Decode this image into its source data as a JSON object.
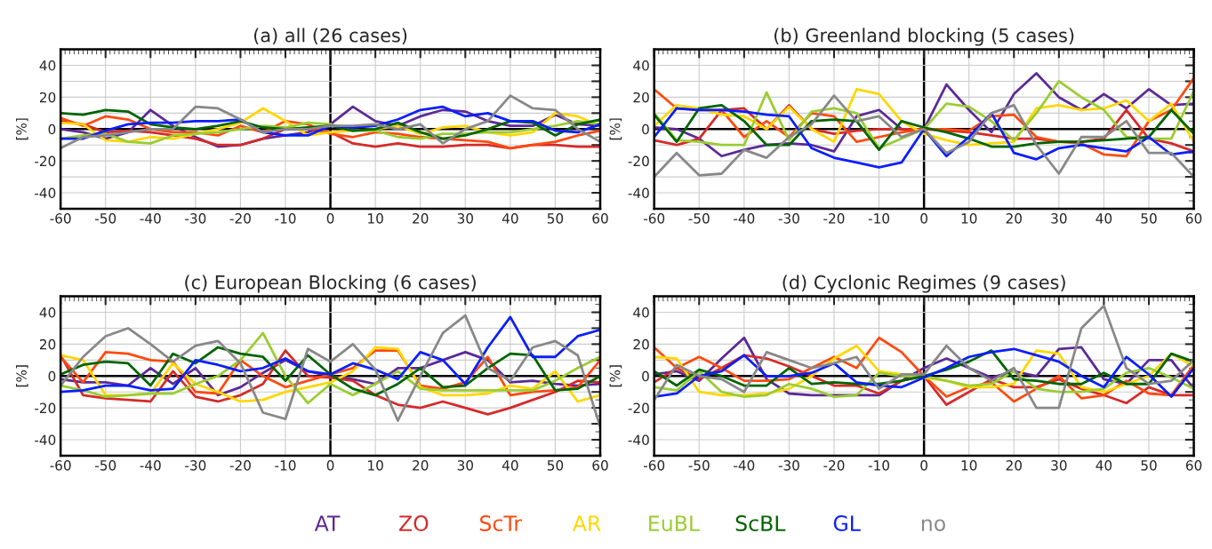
{
  "chart_data": [
    {
      "type": "line",
      "title": "(a) all (26 cases)",
      "ylabel": "[%]",
      "xlim": [
        -60,
        60
      ],
      "xticks": [
        -60,
        -50,
        -40,
        -30,
        -20,
        -10,
        0,
        10,
        20,
        30,
        40,
        50,
        60
      ],
      "ylim": [
        -50,
        50
      ],
      "yticks": [
        {
          "value": -50,
          "label": null
        },
        -40,
        {
          "value": -30,
          "label": null
        },
        -20,
        {
          "value": -10,
          "label": null
        },
        0,
        {
          "value": 10,
          "label": null
        },
        20,
        {
          "value": 30,
          "label": null
        },
        40,
        {
          "value": 50,
          "label": null
        }
      ],
      "grid": true,
      "legend": "bottom",
      "x": [
        -60,
        -55,
        -50,
        -45,
        -40,
        -35,
        -30,
        -25,
        -20,
        -15,
        -10,
        -5,
        0,
        5,
        10,
        15,
        20,
        25,
        30,
        35,
        40,
        45,
        50,
        55,
        60
      ],
      "series": [
        {
          "name": "AT",
          "color": "#5b2a96",
          "values": [
            0,
            -2,
            -6,
            -2,
            12,
            2,
            -5,
            -11,
            -10,
            -6,
            -4,
            -2,
            3,
            14,
            5,
            2,
            8,
            12,
            11,
            5,
            2,
            2,
            9,
            3,
            2
          ]
        },
        {
          "name": "ZO",
          "color": "#d62a2a",
          "values": [
            5,
            3,
            -2,
            -1,
            -2,
            -4,
            -6,
            -10,
            -10,
            -6,
            0,
            0,
            -2,
            -9,
            -11,
            -9,
            -11,
            -11,
            -10,
            -10,
            -12,
            -10,
            -10,
            -11,
            -11
          ]
        },
        {
          "name": "ScTr",
          "color": "#ff4a10",
          "values": [
            7,
            2,
            8,
            6,
            0,
            -2,
            -2,
            -4,
            2,
            -2,
            5,
            3,
            -3,
            -5,
            -2,
            -3,
            -5,
            -6,
            -7,
            -8,
            -12,
            -10,
            -8,
            -4,
            -1
          ]
        },
        {
          "name": "AR",
          "color": "#ffd700",
          "values": [
            4,
            3,
            -7,
            -8,
            -5,
            -6,
            -3,
            0,
            4,
            13,
            5,
            -4,
            -2,
            -1,
            0,
            2,
            -3,
            1,
            2,
            -2,
            -4,
            -2,
            10,
            8,
            2
          ]
        },
        {
          "name": "EuBL",
          "color": "#9acd32",
          "values": [
            -6,
            -4,
            -3,
            -8,
            -9,
            -4,
            -3,
            -2,
            0,
            2,
            1,
            4,
            3,
            -1,
            -1,
            -5,
            -6,
            -3,
            -3,
            -2,
            -2,
            0,
            2,
            5,
            3
          ]
        },
        {
          "name": "ScBL",
          "color": "#006400",
          "values": [
            10,
            9,
            12,
            11,
            3,
            1,
            0,
            2,
            5,
            1,
            0,
            1,
            2,
            -1,
            0,
            4,
            -2,
            -6,
            -4,
            0,
            5,
            4,
            -4,
            3,
            6
          ]
        },
        {
          "name": "GL",
          "color": "#0a1eff",
          "values": [
            -6,
            -6,
            -1,
            3,
            4,
            4,
            5,
            5,
            6,
            -2,
            -4,
            -4,
            2,
            1,
            2,
            6,
            12,
            14,
            8,
            10,
            5,
            5,
            -1,
            -2,
            3
          ]
        },
        {
          "name": "no",
          "color": "#888888",
          "values": [
            -12,
            -5,
            -4,
            -2,
            0,
            0,
            14,
            13,
            6,
            -2,
            0,
            0,
            2,
            2,
            3,
            0,
            3,
            -9,
            0,
            5,
            21,
            13,
            12,
            0,
            -8
          ]
        }
      ]
    },
    {
      "type": "line",
      "title": "(b) Greenland blocking (5 cases)",
      "ylabel": "[%]",
      "xlim": [
        -60,
        60
      ],
      "xticks": [
        -60,
        -50,
        -40,
        -30,
        -20,
        -10,
        0,
        10,
        20,
        30,
        40,
        50,
        60
      ],
      "ylim": [
        -50,
        50
      ],
      "yticks": [
        {
          "value": -50,
          "label": null
        },
        -40,
        {
          "value": -30,
          "label": null
        },
        -20,
        {
          "value": -10,
          "label": null
        },
        0,
        {
          "value": 10,
          "label": null
        },
        20,
        {
          "value": 30,
          "label": null
        },
        40,
        {
          "value": 50,
          "label": null
        }
      ],
      "grid": true,
      "x": [
        -60,
        -55,
        -50,
        -45,
        -40,
        -35,
        -30,
        -25,
        -20,
        -15,
        -10,
        -5,
        0,
        5,
        10,
        15,
        20,
        25,
        30,
        35,
        40,
        45,
        50,
        55,
        60
      ],
      "series": [
        {
          "color": "#5b2a96",
          "values": [
            1,
            0,
            -6,
            -17,
            -13,
            -10,
            -9,
            -10,
            -14,
            8,
            12,
            0,
            0,
            28,
            12,
            -2,
            22,
            35,
            20,
            12,
            22,
            13,
            25,
            15,
            16
          ]
        },
        {
          "color": "#d62a2a",
          "values": [
            -7,
            -10,
            -6,
            12,
            13,
            0,
            15,
            0,
            -3,
            -1,
            0,
            0,
            0,
            -1,
            -2,
            -4,
            -6,
            -6,
            -8,
            -8,
            -6,
            12,
            -6,
            -9,
            -14
          ]
        },
        {
          "color": "#ff4a10",
          "values": [
            25,
            13,
            12,
            12,
            -5,
            5,
            -5,
            10,
            8,
            -8,
            -5,
            -2,
            0,
            0,
            -1,
            8,
            9,
            -5,
            -8,
            -9,
            -16,
            -17,
            5,
            12,
            32
          ]
        },
        {
          "color": "#ffd700",
          "values": [
            2,
            15,
            13,
            9,
            8,
            0,
            14,
            0,
            -8,
            25,
            22,
            5,
            -3,
            -7,
            -10,
            -9,
            -8,
            13,
            15,
            12,
            13,
            18,
            5,
            16,
            -8
          ]
        },
        {
          "color": "#9acd32",
          "values": [
            10,
            -7,
            -8,
            -10,
            -10,
            23,
            -7,
            11,
            13,
            10,
            -12,
            -6,
            0,
            16,
            14,
            5,
            -7,
            10,
            30,
            20,
            12,
            -5,
            -6,
            -6,
            24
          ]
        },
        {
          "color": "#006400",
          "values": [
            9,
            -8,
            13,
            15,
            5,
            -10,
            -10,
            5,
            6,
            5,
            -13,
            5,
            1,
            -2,
            -6,
            -11,
            -11,
            -9,
            -8,
            -8,
            -7,
            -6,
            -5,
            12,
            -3
          ]
        },
        {
          "color": "#0a1eff",
          "values": [
            -5,
            13,
            12,
            12,
            11,
            9,
            8,
            -12,
            -18,
            -21,
            -24,
            -21,
            0,
            -17,
            -5,
            10,
            -15,
            -19,
            -12,
            -10,
            -12,
            -14,
            -5,
            -16,
            -14
          ]
        },
        {
          "color": "#888888",
          "values": [
            -30,
            -15,
            -29,
            -28,
            -13,
            -18,
            -5,
            3,
            21,
            5,
            8,
            -5,
            0,
            -15,
            -8,
            10,
            15,
            -10,
            -28,
            -5,
            -5,
            5,
            -15,
            -15,
            -30
          ]
        }
      ]
    },
    {
      "type": "line",
      "title": "(c) European Blocking (6 cases)",
      "ylabel": "[%]",
      "xlim": [
        -60,
        60
      ],
      "xticks": [
        -60,
        -50,
        -40,
        -30,
        -20,
        -10,
        0,
        10,
        20,
        30,
        40,
        50,
        60
      ],
      "ylim": [
        -50,
        50
      ],
      "yticks": [
        {
          "value": -50,
          "label": null
        },
        -40,
        {
          "value": -30,
          "label": null
        },
        -20,
        {
          "value": -10,
          "label": null
        },
        0,
        {
          "value": 10,
          "label": null
        },
        20,
        {
          "value": 30,
          "label": null
        },
        40,
        {
          "value": 50,
          "label": null
        }
      ],
      "grid": true,
      "x": [
        -60,
        -55,
        -50,
        -45,
        -40,
        -35,
        -30,
        -25,
        -20,
        -15,
        -10,
        -5,
        0,
        5,
        10,
        15,
        20,
        25,
        30,
        35,
        40,
        45,
        50,
        55,
        60
      ],
      "series": [
        {
          "color": "#5b2a96",
          "values": [
            -2,
            -4,
            -4,
            -6,
            5,
            -5,
            5,
            -12,
            -7,
            2,
            10,
            3,
            0,
            -2,
            -5,
            5,
            5,
            10,
            15,
            10,
            -4,
            -3,
            -5,
            -6,
            -5
          ]
        },
        {
          "color": "#d62a2a",
          "values": [
            13,
            -12,
            -14,
            -15,
            -16,
            3,
            -13,
            -16,
            -12,
            -5,
            16,
            0,
            -1,
            -3,
            -12,
            -18,
            -20,
            -16,
            -20,
            -24,
            -20,
            -15,
            -10,
            -3,
            -4
          ]
        },
        {
          "color": "#ff4a10",
          "values": [
            12,
            -4,
            15,
            14,
            10,
            9,
            -10,
            -11,
            10,
            0,
            -7,
            -3,
            1,
            5,
            16,
            16,
            -6,
            -8,
            -4,
            12,
            -12,
            -10,
            -9,
            -7,
            10
          ]
        },
        {
          "color": "#ffd700",
          "values": [
            13,
            10,
            -12,
            -12,
            -11,
            8,
            -5,
            -10,
            -16,
            -15,
            -10,
            -7,
            -4,
            3,
            18,
            17,
            -7,
            -12,
            -12,
            -11,
            -6,
            -8,
            3,
            -16,
            -12
          ]
        },
        {
          "color": "#9acd32",
          "values": [
            -6,
            -9,
            -13,
            -12,
            -11,
            -11,
            -5,
            0,
            10,
            27,
            0,
            -17,
            -5,
            -12,
            -5,
            3,
            -8,
            -9,
            -9,
            -9,
            -9,
            -9,
            -3,
            5,
            12
          ]
        },
        {
          "color": "#006400",
          "values": [
            1,
            7,
            9,
            8,
            -6,
            14,
            8,
            18,
            14,
            12,
            -3,
            13,
            1,
            -8,
            -12,
            -5,
            5,
            -7,
            -6,
            5,
            14,
            13,
            -9,
            -8,
            0
          ]
        },
        {
          "color": "#0a1eff",
          "values": [
            -10,
            -9,
            -6,
            -6,
            -9,
            -8,
            10,
            7,
            3,
            5,
            11,
            3,
            1,
            8,
            4,
            -2,
            15,
            10,
            -5,
            18,
            37,
            12,
            12,
            25,
            29
          ]
        },
        {
          "color": "#888888",
          "values": [
            -6,
            12,
            25,
            30,
            20,
            9,
            19,
            22,
            8,
            -23,
            -27,
            17,
            9,
            20,
            4,
            -28,
            0,
            27,
            38,
            5,
            -3,
            18,
            22,
            13,
            -32
          ]
        }
      ]
    },
    {
      "type": "line",
      "title": "(d) Cyclonic Regimes (9 cases)",
      "ylabel": "[%]",
      "xlim": [
        -60,
        60
      ],
      "xticks": [
        -60,
        -50,
        -40,
        -30,
        -20,
        -10,
        0,
        10,
        20,
        30,
        40,
        50,
        60
      ],
      "ylim": [
        -50,
        50
      ],
      "yticks": [
        {
          "value": -50,
          "label": null
        },
        -40,
        {
          "value": -30,
          "label": null
        },
        -20,
        {
          "value": -10,
          "label": null
        },
        0,
        {
          "value": 10,
          "label": null
        },
        20,
        {
          "value": 30,
          "label": null
        },
        40,
        {
          "value": 50,
          "label": null
        }
      ],
      "grid": true,
      "x": [
        -60,
        -55,
        -50,
        -45,
        -40,
        -35,
        -30,
        -25,
        -20,
        -15,
        -10,
        -5,
        0,
        5,
        10,
        15,
        20,
        25,
        30,
        35,
        40,
        45,
        50,
        55,
        60
      ],
      "series": [
        {
          "color": "#5b2a96",
          "values": [
            1,
            3,
            -3,
            11,
            24,
            -2,
            -11,
            -12,
            -12,
            -12,
            -12,
            -3,
            5,
            11,
            5,
            -1,
            3,
            0,
            17,
            18,
            -2,
            -5,
            10,
            10,
            -8
          ]
        },
        {
          "color": "#d62a2a",
          "values": [
            -4,
            5,
            -2,
            5,
            13,
            11,
            6,
            0,
            -6,
            -6,
            -11,
            -3,
            0,
            -18,
            -10,
            -2,
            -7,
            -7,
            -2,
            -8,
            -12,
            -17,
            -7,
            -12,
            -12
          ]
        },
        {
          "color": "#ff4a10",
          "values": [
            18,
            5,
            12,
            5,
            -3,
            -3,
            -2,
            5,
            12,
            5,
            24,
            15,
            0,
            -13,
            -7,
            -4,
            -16,
            -8,
            0,
            -14,
            -12,
            -3,
            -11,
            -12,
            7
          ]
        },
        {
          "color": "#ffd700",
          "values": [
            12,
            11,
            -10,
            -12,
            -12,
            -11,
            -8,
            0,
            11,
            19,
            3,
            1,
            -1,
            -3,
            -7,
            -7,
            -5,
            16,
            14,
            -7,
            -10,
            -5,
            0,
            14,
            6
          ]
        },
        {
          "color": "#9acd32",
          "values": [
            -7,
            -9,
            3,
            -10,
            -13,
            -12,
            -5,
            -8,
            -13,
            -12,
            2,
            0,
            0,
            -3,
            -6,
            -5,
            3,
            -8,
            -10,
            -10,
            -8,
            2,
            5,
            -1,
            -8
          ]
        },
        {
          "color": "#006400",
          "values": [
            3,
            -6,
            4,
            0,
            -6,
            -6,
            5,
            -5,
            -4,
            -5,
            -5,
            -3,
            0,
            4,
            9,
            16,
            -2,
            -3,
            -5,
            -5,
            2,
            -5,
            -5,
            14,
            9
          ]
        },
        {
          "color": "#0a1eff",
          "values": [
            -13,
            -11,
            0,
            3,
            13,
            0,
            0,
            2,
            8,
            -4,
            -6,
            -7,
            -1,
            5,
            12,
            15,
            17,
            13,
            9,
            0,
            -7,
            12,
            1,
            -13,
            5
          ]
        },
        {
          "color": "#888888",
          "values": [
            -15,
            7,
            0,
            -2,
            -10,
            15,
            10,
            5,
            8,
            12,
            -8,
            1,
            1,
            19,
            5,
            -3,
            5,
            -20,
            -20,
            30,
            44,
            5,
            -5,
            -3,
            10
          ]
        }
      ]
    }
  ]
}
